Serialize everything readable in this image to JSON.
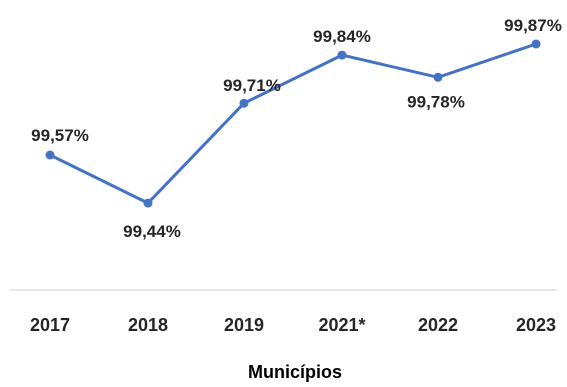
{
  "chart_data": {
    "type": "line",
    "categories": [
      "2017",
      "2018",
      "2019",
      "2021*",
      "2022",
      "2023"
    ],
    "values": [
      99.57,
      99.44,
      99.71,
      99.84,
      99.78,
      99.87
    ],
    "data_labels": [
      "99,57%",
      "99,44%",
      "99,71%",
      "99,84%",
      "99,78%",
      "99,87%"
    ],
    "xlabel": "Municípios",
    "ylabel": "",
    "title": "",
    "ylim": [
      99.2,
      99.9
    ],
    "grid": false,
    "legend": "none",
    "colors": {
      "line": "#4472C4",
      "axis": "#D9D9D9",
      "text": "#262626"
    }
  }
}
